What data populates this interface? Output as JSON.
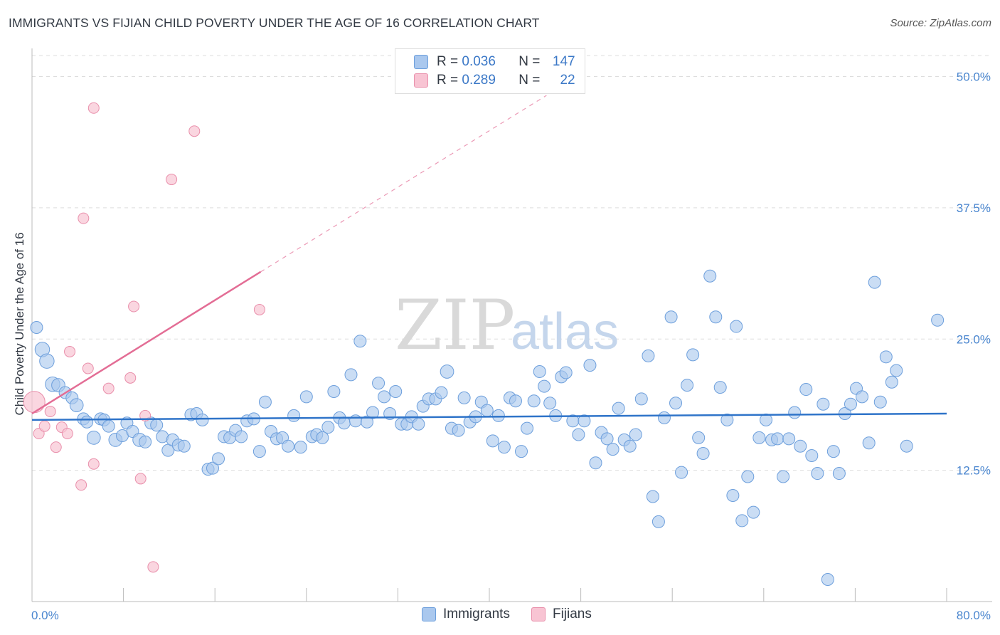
{
  "title": "IMMIGRANTS VS FIJIAN CHILD POVERTY UNDER THE AGE OF 16 CORRELATION CHART",
  "source": "Source: ZipAtlas.com",
  "watermark": {
    "zip": "ZIP",
    "atlas": "atlas"
  },
  "legend": {
    "rows": [
      {
        "r_label": "R =",
        "r_value": "0.036",
        "n_label": "N =",
        "n_value": "147"
      },
      {
        "r_label": "R =",
        "r_value": "0.289",
        "n_label": "N =",
        "n_value": "22"
      }
    ]
  },
  "bottom_legend": {
    "immigrants": "Immigrants",
    "fijians": "Fijians"
  },
  "colors": {
    "immigrants_fill": "#aac8ee",
    "immigrants_stroke": "#6d9fdc",
    "immigrants_line": "#2f74c9",
    "fijians_fill": "#f8c4d3",
    "fijians_stroke": "#e98fab",
    "fijians_line": "#e36d95",
    "grid": "#dddddd",
    "tick": "#4a86cf"
  },
  "chart_data": {
    "type": "scatter",
    "xlabel": "",
    "ylabel": "Child Poverty Under the Age of 16",
    "xlim": [
      0,
      80
    ],
    "ylim": [
      0,
      52
    ],
    "x_tick_labels": [
      "0.0%",
      "80.0%"
    ],
    "y_ticks": [
      12.5,
      25.0,
      37.5,
      50.0
    ],
    "y_tick_labels": [
      "12.5%",
      "25.0%",
      "37.5%",
      "50.0%"
    ],
    "grid": true,
    "series": [
      {
        "name": "Immigrants",
        "trend": {
          "x0": 0,
          "y0": 17.3,
          "x1": 80,
          "y1": 17.9
        },
        "points": [
          [
            0.4,
            26.1,
            1
          ],
          [
            0.9,
            24.0,
            1.2
          ],
          [
            1.3,
            22.9,
            1.2
          ],
          [
            1.8,
            20.7,
            1.2
          ],
          [
            2.3,
            20.6,
            1.1
          ],
          [
            2.9,
            19.9,
            1
          ],
          [
            3.5,
            19.4,
            1
          ],
          [
            3.9,
            18.7,
            1.1
          ],
          [
            4.5,
            17.4,
            1
          ],
          [
            4.8,
            17.1,
            1
          ],
          [
            5.4,
            15.6,
            1.1
          ],
          [
            6.0,
            17.4,
            1
          ],
          [
            6.3,
            17.3,
            1
          ],
          [
            6.7,
            16.7,
            1
          ],
          [
            7.3,
            15.4,
            1.1
          ],
          [
            7.9,
            15.8,
            1
          ],
          [
            8.3,
            17.0,
            1
          ],
          [
            8.8,
            16.2,
            1
          ],
          [
            9.4,
            15.4,
            1.1
          ],
          [
            9.9,
            15.2,
            1
          ],
          [
            10.4,
            17.0,
            1
          ],
          [
            10.9,
            16.8,
            1
          ],
          [
            11.4,
            15.7,
            1
          ],
          [
            11.9,
            14.4,
            1
          ],
          [
            12.3,
            15.4,
            1
          ],
          [
            12.8,
            14.9,
            1
          ],
          [
            13.3,
            14.8,
            1
          ],
          [
            13.9,
            17.8,
            1
          ],
          [
            14.4,
            17.9,
            1
          ],
          [
            14.9,
            17.3,
            1
          ],
          [
            15.4,
            12.6,
            1
          ],
          [
            15.8,
            12.7,
            1
          ],
          [
            16.3,
            13.6,
            1
          ],
          [
            16.8,
            15.7,
            1
          ],
          [
            17.3,
            15.6,
            1
          ],
          [
            17.8,
            16.3,
            1
          ],
          [
            18.3,
            15.7,
            1
          ],
          [
            18.8,
            17.2,
            1
          ],
          [
            19.4,
            17.4,
            1
          ],
          [
            19.9,
            14.3,
            1
          ],
          [
            20.4,
            19.0,
            1
          ],
          [
            20.9,
            16.2,
            1
          ],
          [
            21.4,
            15.5,
            1
          ],
          [
            21.9,
            15.6,
            1
          ],
          [
            22.4,
            14.8,
            1
          ],
          [
            22.9,
            17.7,
            1
          ],
          [
            23.5,
            14.7,
            1
          ],
          [
            24.0,
            19.5,
            1
          ],
          [
            24.5,
            15.7,
            1
          ],
          [
            24.9,
            15.9,
            1
          ],
          [
            25.4,
            15.6,
            1
          ],
          [
            25.9,
            16.6,
            1
          ],
          [
            26.4,
            20.0,
            1
          ],
          [
            26.9,
            17.5,
            1
          ],
          [
            27.3,
            17.0,
            1
          ],
          [
            27.9,
            21.6,
            1
          ],
          [
            28.3,
            17.2,
            1
          ],
          [
            28.7,
            24.8,
            1
          ],
          [
            29.3,
            17.1,
            1
          ],
          [
            29.8,
            18.0,
            1
          ],
          [
            30.3,
            20.8,
            1
          ],
          [
            30.8,
            19.5,
            1
          ],
          [
            31.3,
            17.9,
            1
          ],
          [
            31.8,
            20.0,
            1
          ],
          [
            32.3,
            16.9,
            1
          ],
          [
            32.8,
            16.9,
            1
          ],
          [
            33.2,
            17.6,
            1
          ],
          [
            33.8,
            16.9,
            1
          ],
          [
            34.2,
            18.6,
            1
          ],
          [
            34.7,
            19.3,
            1
          ],
          [
            35.3,
            19.3,
            1
          ],
          [
            35.8,
            19.9,
            1
          ],
          [
            36.3,
            21.9,
            1.1
          ],
          [
            36.7,
            16.5,
            1
          ],
          [
            37.3,
            16.3,
            1
          ],
          [
            37.8,
            19.4,
            1
          ],
          [
            38.3,
            17.1,
            1
          ],
          [
            38.8,
            17.6,
            1
          ],
          [
            39.3,
            19.0,
            1
          ],
          [
            39.8,
            18.2,
            1
          ],
          [
            40.3,
            15.3,
            1
          ],
          [
            40.8,
            17.7,
            1
          ],
          [
            41.3,
            14.7,
            1
          ],
          [
            41.8,
            19.4,
            1
          ],
          [
            42.3,
            19.1,
            1
          ],
          [
            42.8,
            14.3,
            1
          ],
          [
            43.3,
            16.5,
            1
          ],
          [
            43.9,
            19.1,
            1
          ],
          [
            44.4,
            21.9,
            1
          ],
          [
            44.8,
            20.5,
            1
          ],
          [
            45.3,
            18.9,
            1
          ],
          [
            45.8,
            17.7,
            1
          ],
          [
            46.3,
            21.4,
            1
          ],
          [
            46.7,
            21.8,
            1
          ],
          [
            47.3,
            17.2,
            1
          ],
          [
            47.8,
            15.9,
            1
          ],
          [
            48.3,
            17.2,
            1
          ],
          [
            48.8,
            22.5,
            1
          ],
          [
            49.3,
            13.2,
            1
          ],
          [
            49.8,
            16.1,
            1
          ],
          [
            50.3,
            15.5,
            1
          ],
          [
            50.8,
            14.5,
            1
          ],
          [
            51.3,
            18.4,
            1
          ],
          [
            51.8,
            15.4,
            1
          ],
          [
            52.3,
            14.8,
            1
          ],
          [
            52.8,
            15.9,
            1
          ],
          [
            53.3,
            19.3,
            1
          ],
          [
            53.9,
            23.4,
            1
          ],
          [
            54.3,
            10.0,
            1
          ],
          [
            54.8,
            7.6,
            1
          ],
          [
            55.3,
            17.5,
            1
          ],
          [
            55.9,
            27.1,
            1
          ],
          [
            56.3,
            18.9,
            1
          ],
          [
            56.8,
            12.3,
            1
          ],
          [
            57.3,
            20.6,
            1
          ],
          [
            57.8,
            23.5,
            1
          ],
          [
            58.3,
            15.6,
            1
          ],
          [
            58.7,
            14.1,
            1
          ],
          [
            59.3,
            31.0,
            1
          ],
          [
            59.8,
            27.1,
            1
          ],
          [
            60.2,
            20.4,
            1
          ],
          [
            60.8,
            17.3,
            1
          ],
          [
            61.3,
            10.1,
            1
          ],
          [
            61.6,
            26.2,
            1
          ],
          [
            62.1,
            7.7,
            1
          ],
          [
            62.6,
            11.9,
            1
          ],
          [
            63.1,
            8.5,
            1
          ],
          [
            63.6,
            15.6,
            1
          ],
          [
            64.2,
            17.3,
            1
          ],
          [
            64.7,
            15.4,
            1
          ],
          [
            65.2,
            15.5,
            1
          ],
          [
            65.7,
            11.9,
            1
          ],
          [
            66.2,
            15.5,
            1
          ],
          [
            66.7,
            18.0,
            1
          ],
          [
            67.2,
            14.8,
            1
          ],
          [
            67.7,
            20.2,
            1
          ],
          [
            68.2,
            13.9,
            1
          ],
          [
            68.7,
            12.2,
            1
          ],
          [
            69.2,
            18.8,
            1
          ],
          [
            69.6,
            2.1,
            1
          ],
          [
            70.1,
            14.3,
            1
          ],
          [
            70.6,
            12.2,
            1
          ],
          [
            71.1,
            17.9,
            1
          ],
          [
            71.6,
            18.8,
            1
          ],
          [
            72.1,
            20.3,
            1
          ],
          [
            72.6,
            19.5,
            1
          ],
          [
            73.2,
            15.1,
            1
          ],
          [
            73.7,
            30.4,
            1
          ],
          [
            74.2,
            19.0,
            1
          ],
          [
            74.7,
            23.3,
            1
          ],
          [
            75.2,
            20.9,
            1
          ],
          [
            75.6,
            22.0,
            1
          ],
          [
            76.5,
            14.8,
            1
          ],
          [
            79.2,
            26.8,
            1
          ]
        ]
      },
      {
        "name": "Fijians",
        "trend": {
          "x0": 0,
          "y0": 17.9,
          "x1": 20,
          "y1": 31.4,
          "dashed_to_x": 45,
          "dashed_to_y": 48.2
        },
        "points": [
          [
            0.2,
            19.0,
            2.0
          ],
          [
            0.6,
            16.0,
            1
          ],
          [
            1.1,
            16.7,
            1
          ],
          [
            1.6,
            18.1,
            1
          ],
          [
            2.1,
            14.7,
            1
          ],
          [
            2.6,
            16.6,
            1
          ],
          [
            3.1,
            16.0,
            1
          ],
          [
            3.3,
            23.8,
            1
          ],
          [
            4.3,
            11.1,
            1
          ],
          [
            4.5,
            36.5,
            1
          ],
          [
            4.9,
            22.2,
            1
          ],
          [
            5.4,
            47.0,
            1
          ],
          [
            5.4,
            13.1,
            1
          ],
          [
            6.7,
            20.3,
            1
          ],
          [
            8.6,
            21.3,
            1
          ],
          [
            8.9,
            28.1,
            1
          ],
          [
            9.5,
            11.7,
            1
          ],
          [
            9.9,
            17.7,
            1
          ],
          [
            10.6,
            3.3,
            1
          ],
          [
            12.2,
            40.2,
            1
          ],
          [
            14.2,
            44.8,
            1
          ],
          [
            19.9,
            27.8,
            1
          ]
        ]
      }
    ]
  }
}
